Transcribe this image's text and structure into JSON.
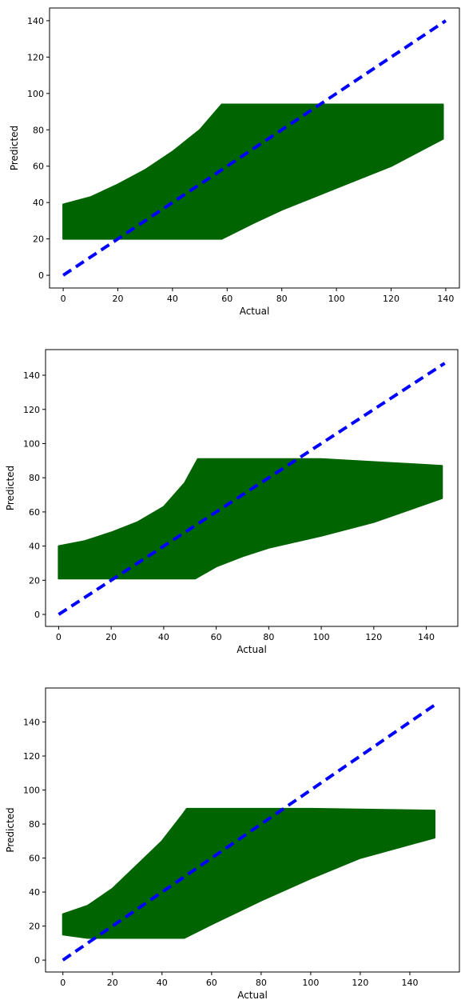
{
  "colors": {
    "band": "#006400",
    "diagonal": "#0000ff",
    "axes": "#000000",
    "background": "#ffffff"
  },
  "chart_data": [
    {
      "type": "line",
      "xlabel": "Actual",
      "ylabel": "Predicted",
      "xlim": [
        -5,
        145
      ],
      "ylim": [
        -7,
        147
      ],
      "xticks": [
        0,
        20,
        40,
        60,
        80,
        100,
        120,
        140
      ],
      "yticks": [
        0,
        20,
        40,
        60,
        80,
        100,
        120,
        140
      ],
      "series": [
        {
          "style": "dashed",
          "color": "#0000ff",
          "points": [
            [
              0,
              0
            ],
            [
              140,
              140
            ]
          ]
        },
        {
          "style": "filled-band",
          "color": "#006400",
          "upper": [
            [
              0,
              39
            ],
            [
              10,
              43
            ],
            [
              20,
              50
            ],
            [
              30,
              58
            ],
            [
              40,
              68
            ],
            [
              50,
              80
            ],
            [
              58,
              94
            ],
            [
              100,
              94
            ],
            [
              139,
              94
            ]
          ],
          "lower": [
            [
              0,
              20
            ],
            [
              20,
              20
            ],
            [
              40,
              20
            ],
            [
              58,
              20
            ],
            [
              70,
              29
            ],
            [
              80,
              36
            ],
            [
              100,
              48
            ],
            [
              120,
              60
            ],
            [
              139,
              75
            ]
          ]
        }
      ]
    },
    {
      "type": "line",
      "xlabel": "Actual",
      "ylabel": "Predicted",
      "xlim": [
        -5,
        152
      ],
      "ylim": [
        -7,
        155
      ],
      "xticks": [
        0,
        20,
        40,
        60,
        80,
        100,
        120,
        140
      ],
      "yticks": [
        0,
        20,
        40,
        60,
        80,
        100,
        120,
        140
      ],
      "series": [
        {
          "style": "dashed",
          "color": "#0000ff",
          "points": [
            [
              0,
              0
            ],
            [
              147,
              147
            ]
          ]
        },
        {
          "style": "filled-band",
          "color": "#006400",
          "upper": [
            [
              0,
              40
            ],
            [
              10,
              43
            ],
            [
              20,
              48
            ],
            [
              30,
              54
            ],
            [
              40,
              63
            ],
            [
              48,
              77
            ],
            [
              53,
              91
            ],
            [
              60,
              91
            ],
            [
              100,
              91
            ],
            [
              146,
              87
            ]
          ],
          "lower": [
            [
              0,
              21
            ],
            [
              20,
              21
            ],
            [
              40,
              21
            ],
            [
              52,
              21
            ],
            [
              60,
              28
            ],
            [
              70,
              34
            ],
            [
              80,
              39
            ],
            [
              100,
              46
            ],
            [
              120,
              54
            ],
            [
              146,
              68
            ]
          ]
        }
      ]
    },
    {
      "type": "line",
      "xlabel": "Actual",
      "ylabel": "Predicted",
      "xlim": [
        -7,
        160
      ],
      "ylim": [
        -7,
        160
      ],
      "xticks": [
        0,
        20,
        40,
        60,
        80,
        100,
        120,
        140
      ],
      "yticks": [
        0,
        20,
        40,
        60,
        80,
        100,
        120,
        140
      ],
      "series": [
        {
          "style": "dashed",
          "color": "#0000ff",
          "points": [
            [
              0,
              0
            ],
            [
              151,
              151
            ]
          ]
        },
        {
          "style": "filled-band",
          "color": "#006400",
          "upper": [
            [
              0,
              27
            ],
            [
              10,
              32
            ],
            [
              20,
              42
            ],
            [
              30,
              56
            ],
            [
              40,
              70
            ],
            [
              48,
              85
            ],
            [
              50,
              89
            ],
            [
              100,
              89
            ],
            [
              150,
              88
            ]
          ],
          "lower": [
            [
              0,
              15
            ],
            [
              10,
              13
            ],
            [
              30,
              13
            ],
            [
              49,
              13
            ],
            [
              60,
              21
            ],
            [
              80,
              35
            ],
            [
              100,
              48
            ],
            [
              120,
              60
            ],
            [
              150,
              72
            ]
          ]
        }
      ]
    }
  ]
}
